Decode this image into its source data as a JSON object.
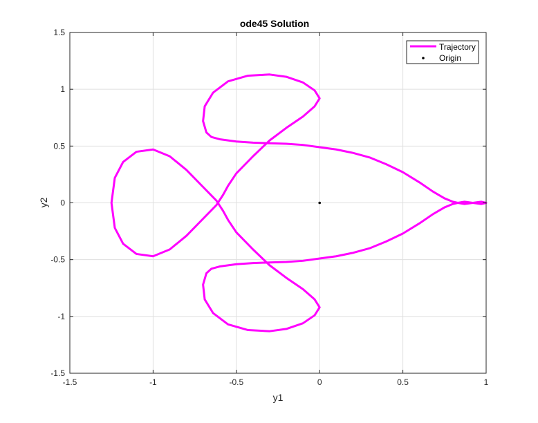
{
  "chart_data": {
    "type": "line",
    "title": "ode45 Solution",
    "xlabel": "y1",
    "ylabel": "y2",
    "xlim": [
      -1.5,
      1
    ],
    "ylim": [
      -1.5,
      1.5
    ],
    "xticks": [
      -1.5,
      -1,
      -0.5,
      0,
      0.5,
      1
    ],
    "xtick_labels": [
      "-1.5",
      "-1",
      "-0.5",
      "0",
      "0.5",
      "1"
    ],
    "yticks": [
      -1.5,
      -1,
      -0.5,
      0,
      0.5,
      1,
      1.5
    ],
    "ytick_labels": [
      "-1.5",
      "-1",
      "-0.5",
      "0",
      "0.5",
      "1",
      "1.5"
    ],
    "grid": true,
    "legend_position": "top-right",
    "series": [
      {
        "name": "Trajectory",
        "color": "#ff00ff",
        "style": "line",
        "x": [
          1.0,
          0.97,
          0.92,
          0.87,
          0.83,
          0.8,
          0.75,
          0.68,
          0.6,
          0.5,
          0.4,
          0.3,
          0.2,
          0.1,
          0.0,
          -0.1,
          -0.2,
          -0.3,
          -0.4,
          -0.5,
          -0.6,
          -0.65,
          -0.68,
          -0.7,
          -0.69,
          -0.64,
          -0.55,
          -0.43,
          -0.3,
          -0.2,
          -0.1,
          -0.03,
          0.0,
          -0.03,
          -0.1,
          -0.2,
          -0.3,
          -0.4,
          -0.5,
          -0.55,
          -0.58,
          -0.62,
          -0.7,
          -0.8,
          -0.9,
          -1.0,
          -1.1,
          -1.18,
          -1.23,
          -1.25,
          -1.23,
          -1.18,
          -1.1,
          -1.0,
          -0.9,
          -0.8,
          -0.7,
          -0.62,
          -0.58,
          -0.55,
          -0.5,
          -0.4,
          -0.3,
          -0.2,
          -0.1,
          -0.03,
          0.0,
          -0.03,
          -0.1,
          -0.2,
          -0.3,
          -0.43,
          -0.55,
          -0.64,
          -0.69,
          -0.7,
          -0.68,
          -0.65,
          -0.6,
          -0.5,
          -0.4,
          -0.3,
          -0.2,
          -0.1,
          0.0,
          0.1,
          0.2,
          0.3,
          0.4,
          0.5,
          0.6,
          0.68,
          0.75,
          0.8,
          0.83,
          0.87,
          0.92,
          0.97,
          1.0
        ],
        "y": [
          0.0,
          -0.01,
          0.0,
          0.01,
          0.0,
          -0.01,
          -0.04,
          -0.1,
          -0.18,
          -0.27,
          -0.34,
          -0.4,
          -0.44,
          -0.47,
          -0.49,
          -0.51,
          -0.52,
          -0.525,
          -0.53,
          -0.54,
          -0.56,
          -0.58,
          -0.62,
          -0.72,
          -0.85,
          -0.97,
          -1.07,
          -1.12,
          -1.13,
          -1.11,
          -1.06,
          -0.99,
          -0.92,
          -0.85,
          -0.76,
          -0.66,
          -0.55,
          -0.41,
          -0.26,
          -0.15,
          -0.07,
          0.02,
          0.14,
          0.29,
          0.41,
          0.47,
          0.45,
          0.36,
          0.22,
          0.0,
          -0.22,
          -0.36,
          -0.45,
          -0.47,
          -0.41,
          -0.29,
          -0.14,
          -0.02,
          0.07,
          0.15,
          0.26,
          0.41,
          0.55,
          0.66,
          0.76,
          0.85,
          0.92,
          0.99,
          1.06,
          1.11,
          1.13,
          1.12,
          1.07,
          0.97,
          0.85,
          0.72,
          0.62,
          0.58,
          0.56,
          0.54,
          0.53,
          0.525,
          0.52,
          0.51,
          0.49,
          0.47,
          0.44,
          0.4,
          0.34,
          0.27,
          0.18,
          0.1,
          0.04,
          0.01,
          0.0,
          -0.01,
          0.0,
          0.01,
          0.0
        ]
      },
      {
        "name": "Origin",
        "color": "#000000",
        "style": "marker",
        "x": [
          0
        ],
        "y": [
          0
        ]
      }
    ]
  }
}
